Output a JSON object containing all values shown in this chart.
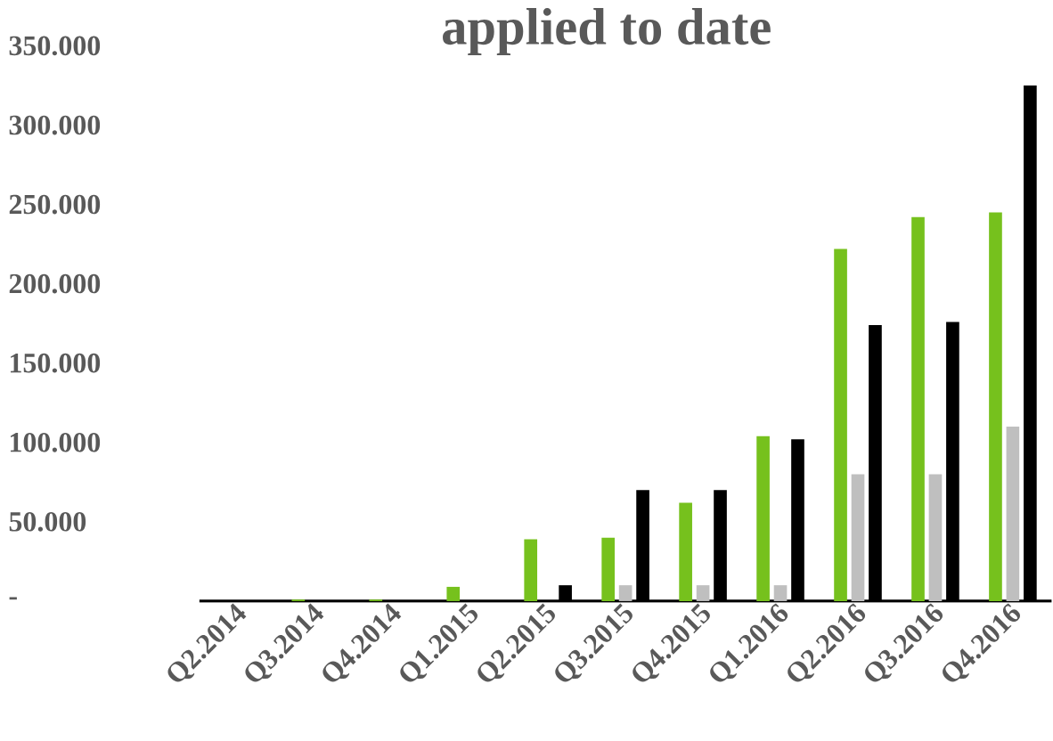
{
  "chart_data": {
    "type": "bar",
    "title": "applied to date",
    "categories": [
      "Q2.2014",
      "Q3.2014",
      "Q4.2014",
      "Q1.2015",
      "Q2.2015",
      "Q3.2015",
      "Q4.2015",
      "Q1.2016",
      "Q2.2016",
      "Q3.2016",
      "Q4.2016"
    ],
    "series": [
      {
        "color": "#76c11d",
        "values": [
          0,
          1000,
          1000,
          9000,
          39000,
          40000,
          62000,
          104000,
          222000,
          242000,
          245000
        ]
      },
      {
        "color": "#bfbfbf",
        "values": [
          0,
          0,
          0,
          0,
          0,
          10000,
          10000,
          10000,
          80000,
          80000,
          110000
        ]
      },
      {
        "color": "#000000",
        "values": [
          0,
          0,
          0,
          0,
          10000,
          70000,
          70000,
          102000,
          174000,
          176000,
          325000
        ]
      }
    ],
    "ylim": [
      0,
      350000
    ],
    "yticks": [
      {
        "value": 0,
        "label": "-"
      },
      {
        "value": 50000,
        "label": "50.000"
      },
      {
        "value": 100000,
        "label": "100.000"
      },
      {
        "value": 150000,
        "label": "150.000"
      },
      {
        "value": 200000,
        "label": "200.000"
      },
      {
        "value": 250000,
        "label": "250.000"
      },
      {
        "value": 300000,
        "label": "300.000"
      },
      {
        "value": 350000,
        "label": "350.000"
      }
    ]
  }
}
